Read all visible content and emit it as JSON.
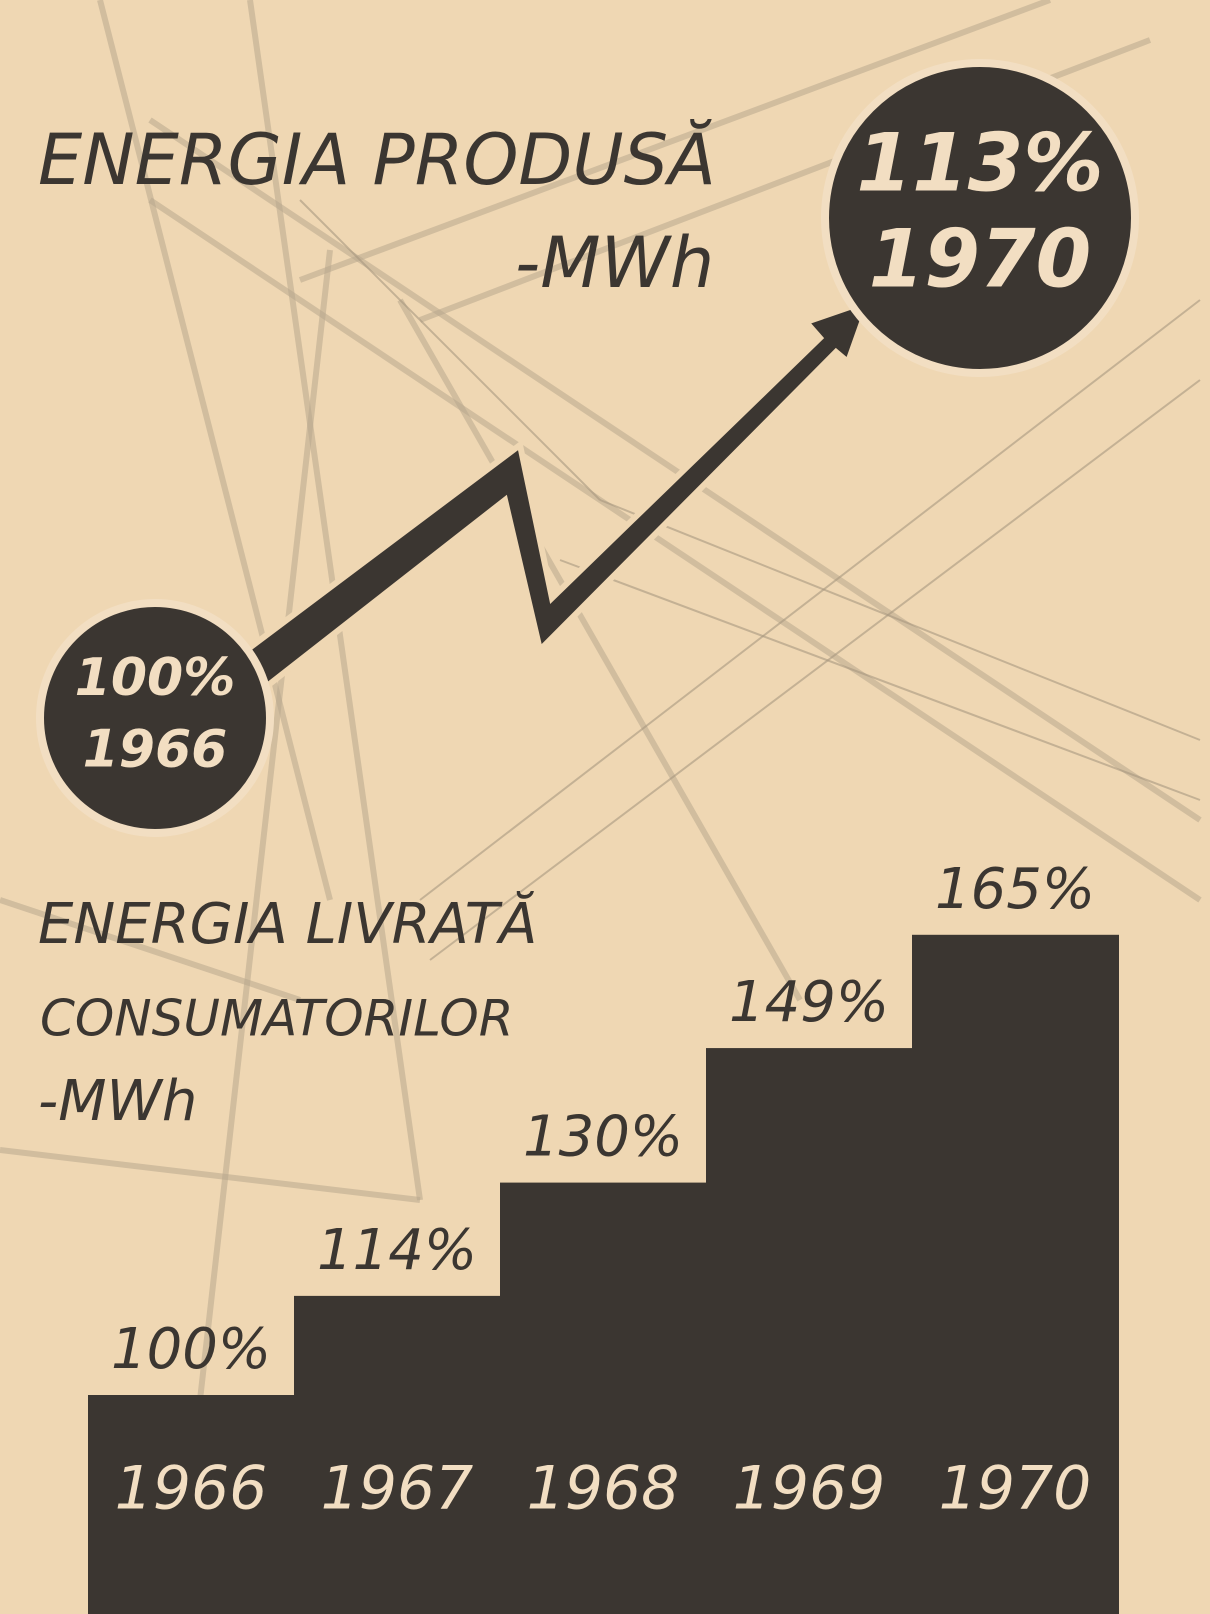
{
  "chart_data": [
    {
      "type": "arrow",
      "title": "ENERGIA PRODUSĂ",
      "unit": "-MWh",
      "categories": [
        "1966",
        "1970"
      ],
      "values": [
        100,
        113
      ],
      "value_labels": [
        "100%",
        "113%"
      ],
      "color": "#3b3631"
    },
    {
      "type": "bar",
      "title_lines": [
        "ENERGIA LIVRATĂ",
        "CONSUMATORILOR"
      ],
      "unit": "-MWh",
      "categories": [
        "1966",
        "1967",
        "1968",
        "1969",
        "1970"
      ],
      "values": [
        100,
        114,
        130,
        149,
        165
      ],
      "value_labels": [
        "100%",
        "114%",
        "130%",
        "149%",
        "165%"
      ],
      "color": "#3b3631"
    }
  ]
}
